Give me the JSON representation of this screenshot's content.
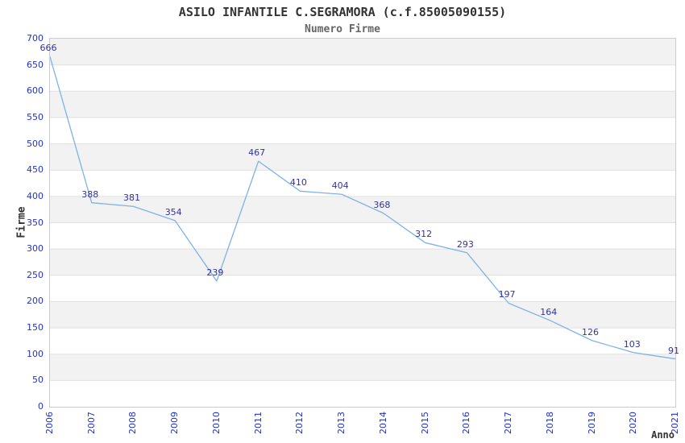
{
  "header": {
    "title": "ASILO INFANTILE C.SEGRAMORA (c.f.85005090155)",
    "subtitle": "Numero Firme"
  },
  "chart_data": {
    "type": "line",
    "title": "ASILO INFANTILE C.SEGRAMORA (c.f.85005090155)",
    "subtitle": "Numero Firme",
    "xlabel": "Anno",
    "ylabel": "Firme",
    "x": [
      "2006",
      "2007",
      "2008",
      "2009",
      "2010",
      "2011",
      "2012",
      "2013",
      "2014",
      "2015",
      "2016",
      "2017",
      "2018",
      "2019",
      "2020",
      "2021"
    ],
    "series": [
      {
        "name": "Numero Firme",
        "values": [
          666,
          388,
          381,
          354,
          239,
          467,
          410,
          404,
          368,
          312,
          293,
          197,
          164,
          126,
          103,
          91
        ]
      }
    ],
    "ylim": [
      0,
      700
    ],
    "ytick_step": 50,
    "yticks": [
      0,
      50,
      100,
      150,
      200,
      250,
      300,
      350,
      400,
      450,
      500,
      550,
      600,
      650,
      700
    ],
    "legend": "none",
    "grid": "horizontal-gridlines-with-alternating-bands",
    "data_labels_shown": true,
    "colors": {
      "line": "#7fb2e5",
      "tick_labels": "#2233cc",
      "data_labels": "#333399",
      "band": "#f2f2f2",
      "band_alt": "#ffffff",
      "gridline": "#e0e0e0",
      "border": "#cccccc",
      "title": "#333333",
      "subtitle": "#666666",
      "axis_titles": "#333333"
    }
  }
}
